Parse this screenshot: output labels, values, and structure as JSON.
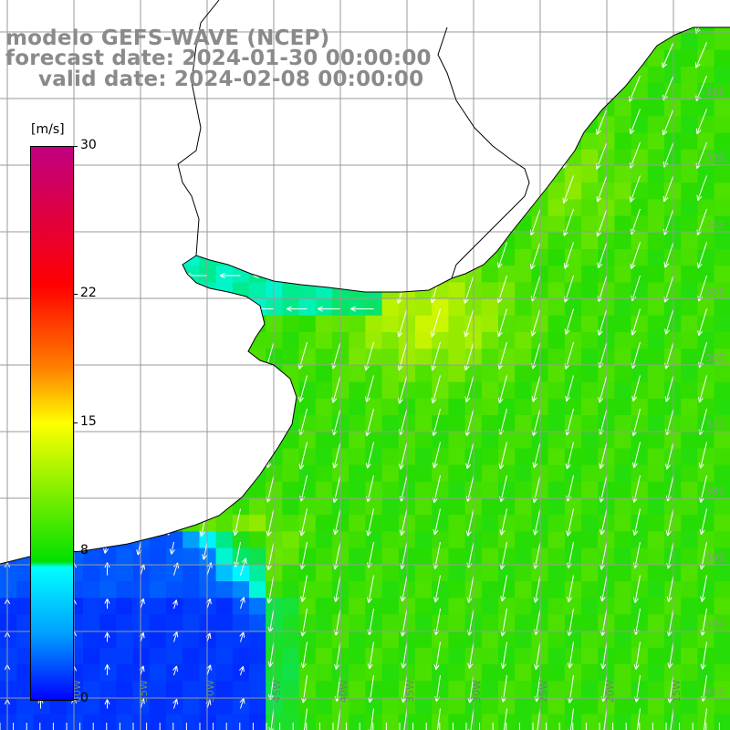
{
  "title": {
    "line1": "modelo GEFS-WAVE (NCEP)",
    "line2": "forecast date: 2024-01-30 00:00:00",
    "line3": "valid date: 2024-02-08 00:00:00"
  },
  "colorbar": {
    "unit": "[m/s]",
    "min": 0,
    "max": 30,
    "ticks": [
      {
        "value": 30,
        "label": "30"
      },
      {
        "value": 22,
        "label": "22"
      },
      {
        "value": 15,
        "label": "15"
      },
      {
        "value": 8,
        "label": "8"
      },
      {
        "value": 0,
        "label": "0"
      }
    ],
    "colors": [
      "#0000ff",
      "#00ffff",
      "#00e000",
      "#ffff00",
      "#ff0000",
      "#c00080"
    ]
  },
  "map": {
    "variable": "wind speed and direction",
    "wind_direction_dominant": "from north-east toward south-west",
    "grid": true,
    "longitude_labels": [
      "60W",
      "55W",
      "50W",
      "45W",
      "40W",
      "35W",
      "30W",
      "25W",
      "20W",
      "15W"
    ],
    "latitude_labels": [
      "32S",
      "33S",
      "34S",
      "35S",
      "36S",
      "37S",
      "38S",
      "39S",
      "40S",
      "41S"
    ],
    "land_color": "#ffffff",
    "coast_color": "#000000",
    "grid_color": "#9a9a9a"
  }
}
